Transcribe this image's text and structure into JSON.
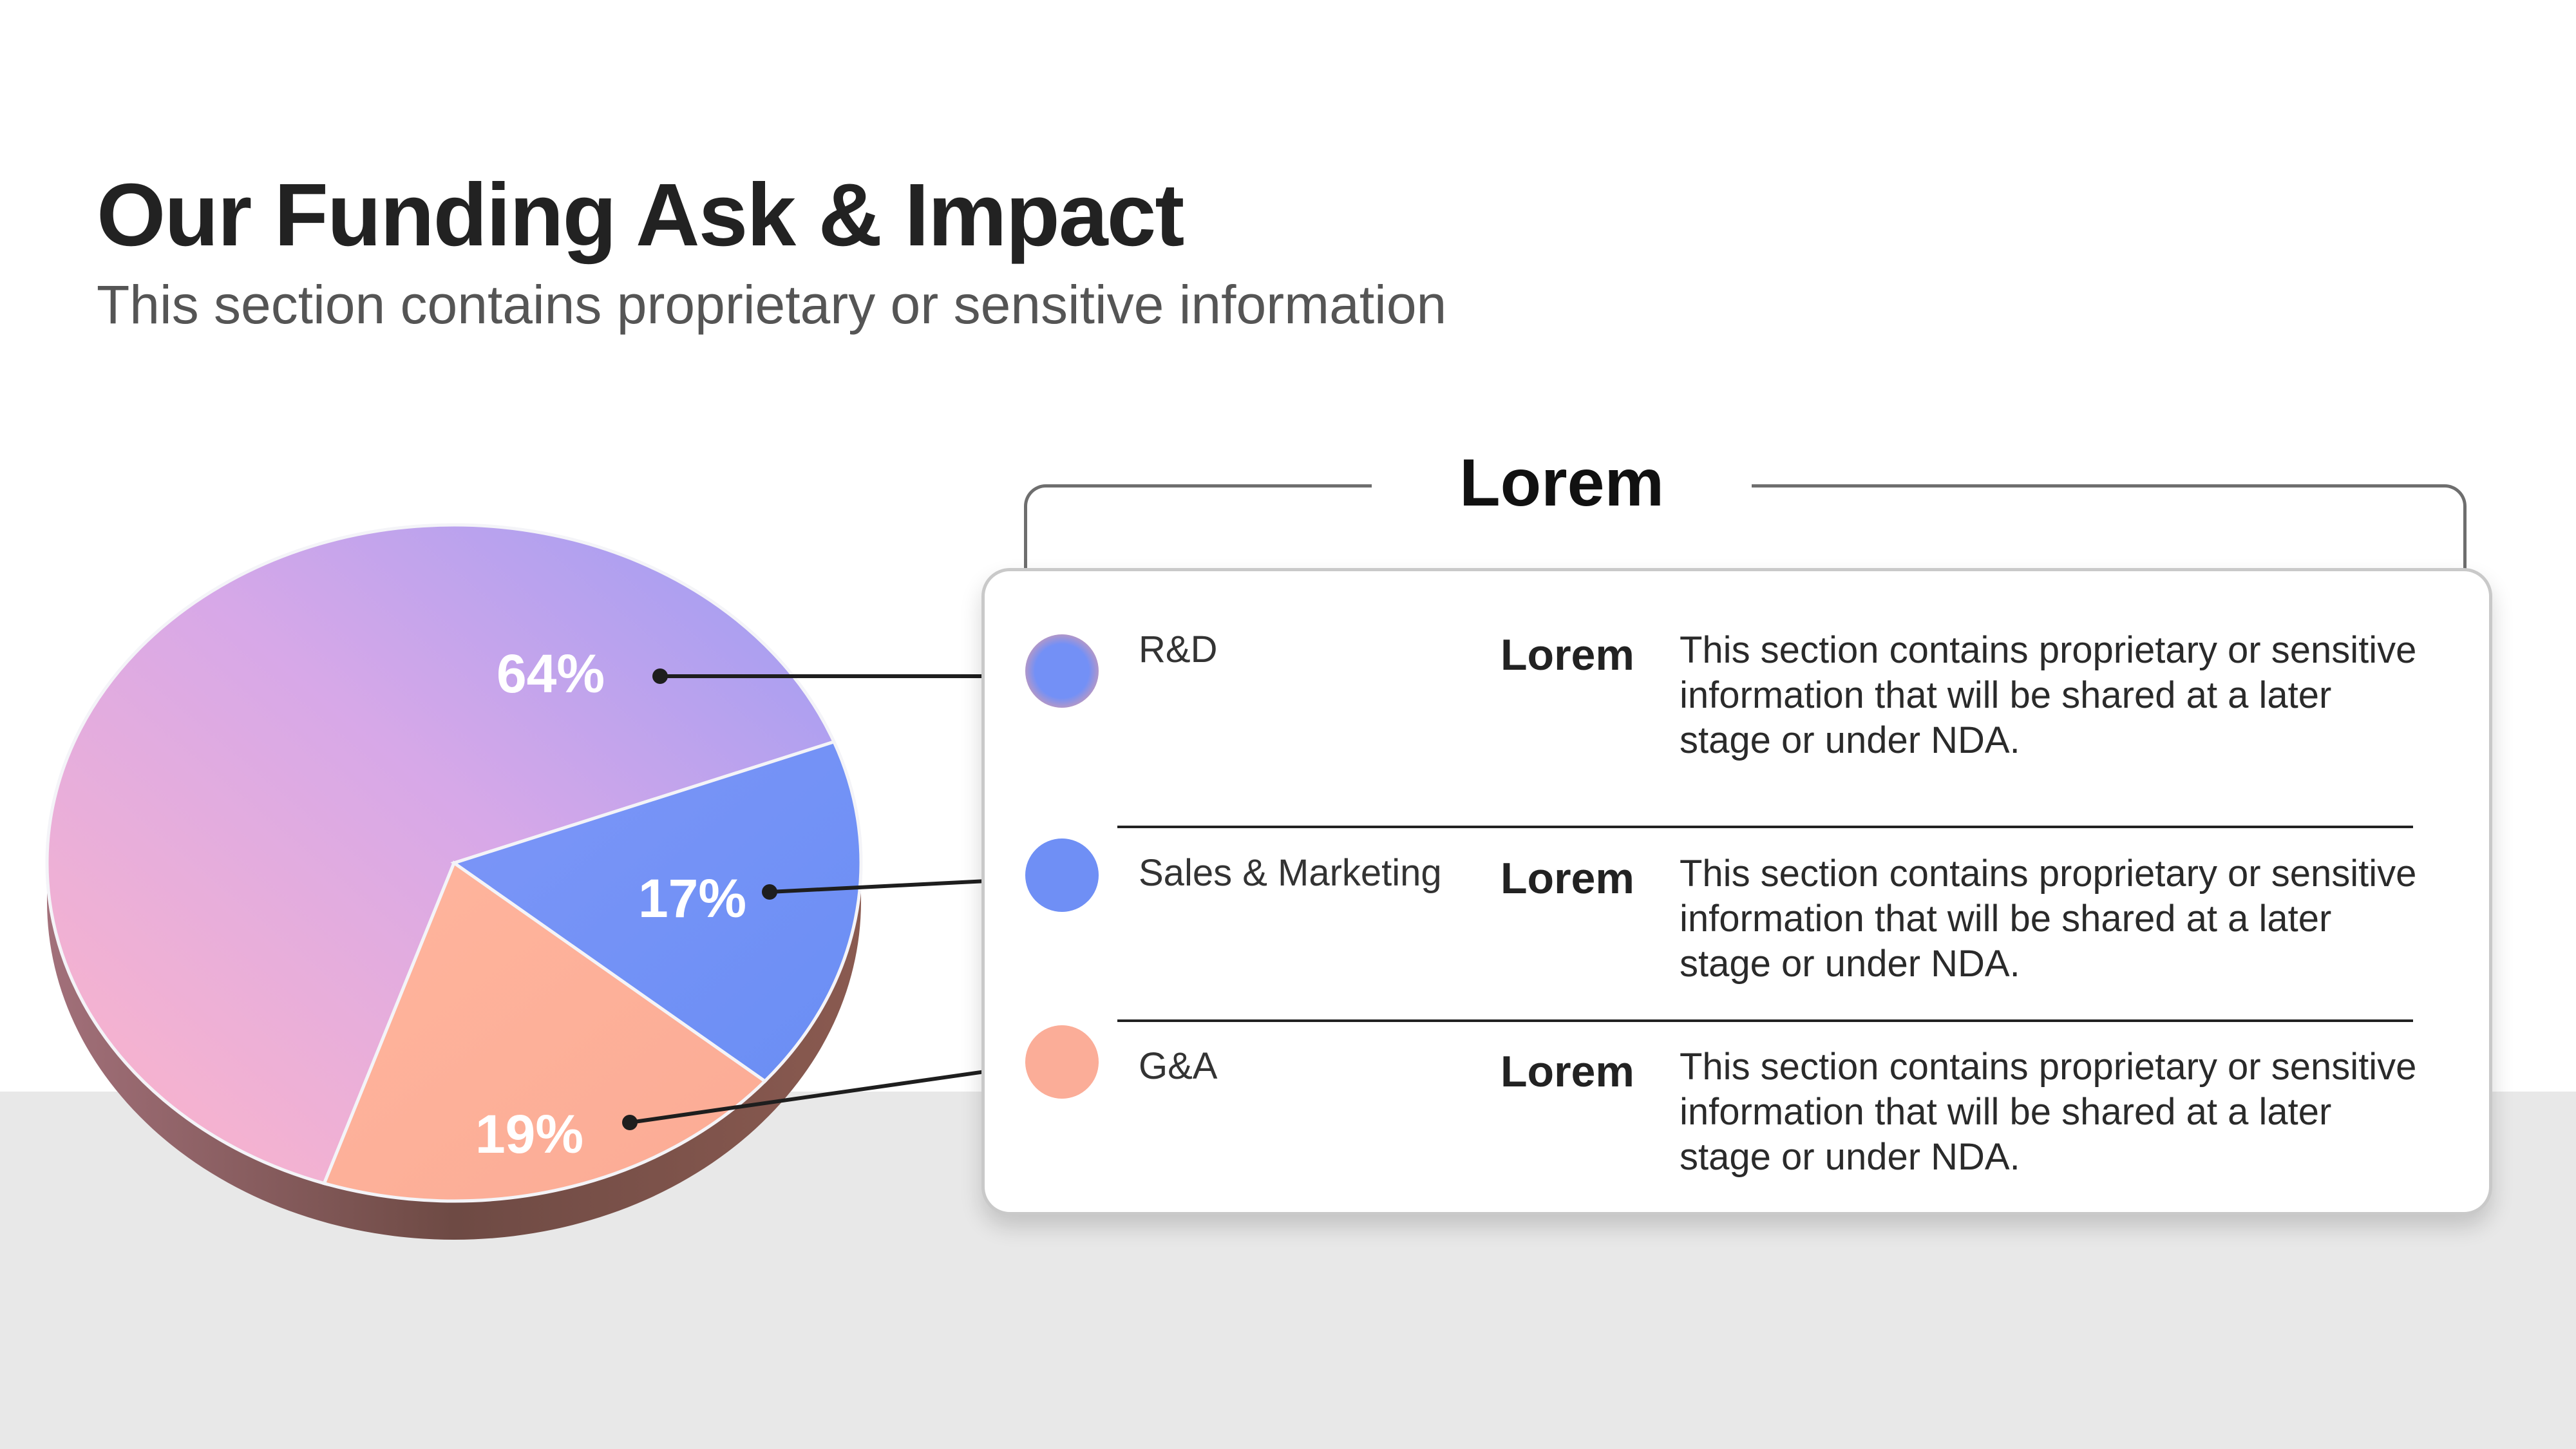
{
  "header": {
    "title": "Our Funding Ask & Impact",
    "subtitle": "This section contains proprietary or sensitive information"
  },
  "chart_data": {
    "type": "pie",
    "categories": [
      "R&D",
      "Sales & Marketing",
      "G&A"
    ],
    "values": [
      64,
      17,
      19
    ],
    "labels": [
      "64%",
      "17%",
      "19%"
    ],
    "colors": [
      "#b59ef0",
      "#7390f6",
      "#fbb09a"
    ]
  },
  "card": {
    "heading": "Lorem",
    "rows": [
      {
        "label": "R&D",
        "value": "Lorem",
        "description": "This section contains proprietary or sensitive information that will be shared at a later stage or under NDA.",
        "color": "#7390f6"
      },
      {
        "label": "Sales & Marketing",
        "value": "Lorem",
        "description": "This section contains proprietary or sensitive information that will be shared at a later stage or under NDA.",
        "color": "#6f8ff5"
      },
      {
        "label": "G&A",
        "value": "Lorem",
        "description": "This section contains proprietary or sensitive information that will be shared at a later stage or under NDA.",
        "color": "#fbad98"
      }
    ]
  }
}
